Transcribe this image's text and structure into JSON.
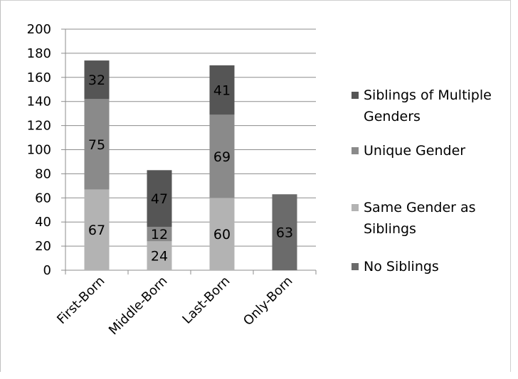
{
  "chart_data": {
    "type": "bar",
    "stacked": true,
    "categories": [
      "First-Born",
      "Middle-Born",
      "Last-Born",
      "Only-Born"
    ],
    "series": [
      {
        "name": "No Siblings",
        "color": "#6b6b6b",
        "values": [
          null,
          null,
          null,
          63
        ]
      },
      {
        "name": "Same Gender as Siblings",
        "color": "#b3b3b3",
        "values": [
          67,
          24,
          60,
          null
        ]
      },
      {
        "name": "Unique Gender",
        "color": "#8a8a8a",
        "values": [
          75,
          12,
          69,
          null
        ]
      },
      {
        "name": "Siblings of Multiple Genders",
        "color": "#555555",
        "values": [
          32,
          47,
          41,
          null
        ]
      }
    ],
    "ylim": [
      0,
      200
    ],
    "yticks": [
      0,
      20,
      40,
      60,
      80,
      100,
      120,
      140,
      160,
      180,
      200
    ],
    "grid": true,
    "legend": {
      "position": "right",
      "order": [
        "Siblings of Multiple Genders",
        "Unique Gender",
        "Same Gender as Siblings",
        "No Siblings"
      ],
      "lines": [
        [
          "Siblings of Multiple",
          "Genders"
        ],
        [
          "Unique Gender"
        ],
        [
          "Same Gender as",
          "Siblings"
        ],
        [
          "No Siblings"
        ]
      ]
    },
    "title": "",
    "xlabel": "",
    "ylabel": ""
  }
}
